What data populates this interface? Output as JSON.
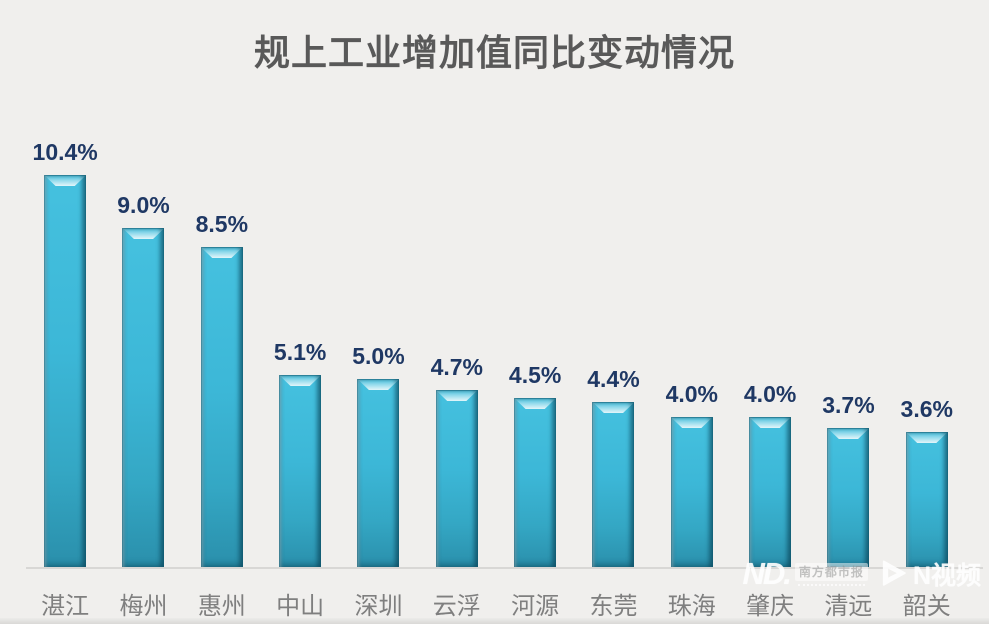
{
  "title": "规上工业增加值同比变动情况",
  "chart_data": {
    "type": "bar",
    "title": "规上工业增加值同比变动情况",
    "categories": [
      "湛江",
      "梅州",
      "惠州",
      "中山",
      "深圳",
      "云浮",
      "河源",
      "东莞",
      "珠海",
      "肇庆",
      "清远",
      "韶关"
    ],
    "values": [
      10.4,
      9.0,
      8.5,
      5.1,
      5.0,
      4.7,
      4.5,
      4.4,
      4.0,
      4.0,
      3.7,
      3.6
    ],
    "value_labels": [
      "10.4%",
      "9.0%",
      "8.5%",
      "5.1%",
      "5.0%",
      "4.7%",
      "4.5%",
      "4.4%",
      "4.0%",
      "4.0%",
      "3.7%",
      "3.6%"
    ],
    "xlabel": "",
    "ylabel": "",
    "ylim": [
      0,
      10.4
    ],
    "grid": false,
    "legend": false,
    "bar_color": "#3cb7d7",
    "bar_edge_color": "#14586e",
    "value_label_color": "#1f3864",
    "category_label_color": "#7f7f7f",
    "background_color": "#f0efed",
    "title_color": "#595959",
    "axis_line_color": "#d8d7d5"
  },
  "watermark": {
    "nd_logo": "ND.",
    "nd_text": "南方都市报",
    "nvideo_label": "N视频"
  }
}
